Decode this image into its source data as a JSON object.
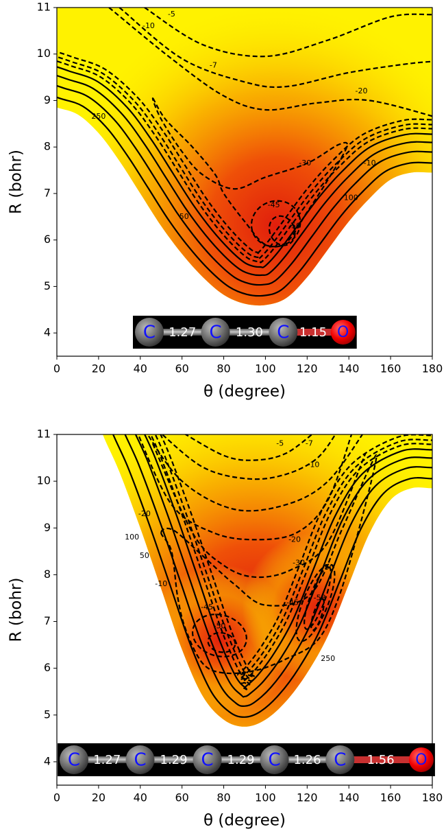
{
  "chart_data": [
    {
      "type": "contour",
      "xlabel": "θ (degree)",
      "ylabel": "R (bohr)",
      "xlim": [
        0,
        180
      ],
      "ylim": [
        3.5,
        11
      ],
      "xticks": [
        0,
        20,
        40,
        60,
        80,
        100,
        120,
        140,
        160,
        180
      ],
      "yticks": [
        4,
        5,
        6,
        7,
        8,
        9,
        10,
        11
      ],
      "contour_labels": [
        -5,
        -10,
        -7,
        -20,
        -30,
        -45,
        -50,
        250,
        50,
        100,
        -10
      ],
      "molecule": {
        "atoms": [
          "C",
          "C",
          "C",
          "O"
        ],
        "bonds": [
          1.27,
          1.3,
          1.15
        ],
        "bond_labels": [
          "1.27",
          "1.30",
          "1.15"
        ]
      }
    },
    {
      "type": "contour",
      "xlabel": "θ (degree)",
      "ylabel": "R (bohr)",
      "xlim": [
        0,
        180
      ],
      "ylim": [
        3.5,
        11
      ],
      "xticks": [
        0,
        20,
        40,
        60,
        80,
        100,
        120,
        140,
        160,
        180
      ],
      "yticks": [
        4,
        5,
        6,
        7,
        8,
        9,
        10,
        11
      ],
      "contour_labels": [
        -5,
        -7,
        -10,
        -20,
        -30,
        -50,
        -45,
        -58,
        -45,
        -50,
        -20,
        100,
        50,
        -10,
        250
      ],
      "molecule": {
        "atoms": [
          "C",
          "C",
          "C",
          "C",
          "C",
          "O"
        ],
        "bonds": [
          1.27,
          1.29,
          1.29,
          1.26,
          1.56
        ],
        "bond_labels": [
          "1.27",
          "1.29",
          "1.29",
          "1.26",
          "1.56"
        ]
      }
    }
  ]
}
